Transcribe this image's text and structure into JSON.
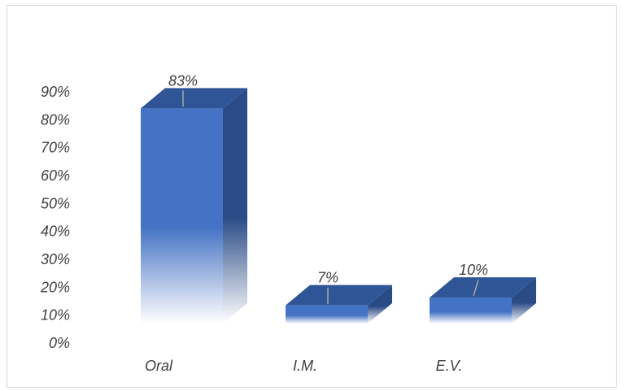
{
  "chart_data": {
    "type": "bar",
    "style": "3d-column",
    "categories": [
      "Oral",
      "I.M.",
      "E.V."
    ],
    "values": [
      83,
      7,
      10
    ],
    "data_labels": [
      "83%",
      "7%",
      "10%"
    ],
    "y_tick_labels": [
      "0%",
      "10%",
      "20%",
      "30%",
      "40%",
      "50%",
      "60%",
      "70%",
      "80%",
      "90%"
    ],
    "ylim": [
      0,
      90
    ],
    "grid": false,
    "legend": "none",
    "colors": {
      "front": "#4472c4",
      "top": "#2f5597",
      "side": "#2a4b86",
      "label_text": "#404040",
      "leader_line": "#a6a6a6"
    }
  }
}
